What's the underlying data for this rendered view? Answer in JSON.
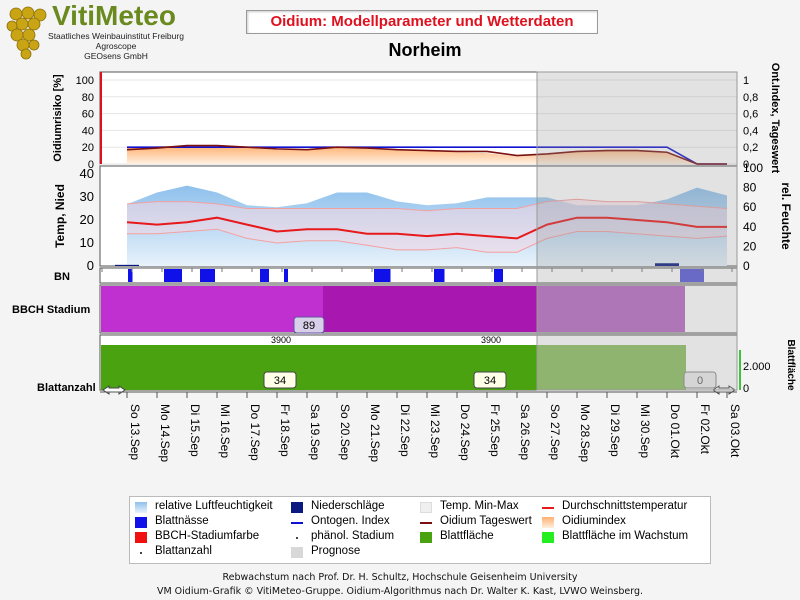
{
  "header": {
    "logo_name": "VitiMeteo",
    "logo_lines": [
      "Staatliches Weinbauinstitut Freiburg",
      "Agroscope",
      "GEOsens GmbH"
    ],
    "title": "Oidium: Modellparameter und Wetterdaten",
    "location": "Norheim"
  },
  "axes": {
    "risk_label": "Oidiumrisiko [%]",
    "risk_ticks": [
      "0",
      "20",
      "40",
      "60",
      "80",
      "100"
    ],
    "ont_label": "Ont.Index, Tageswert",
    "ont_ticks": [
      "0",
      "0,2",
      "0,4",
      "0,6",
      "0,8",
      "1"
    ],
    "temp_label": "Temp, Nied",
    "temp_ticks": [
      "0",
      "10",
      "20",
      "30",
      "40"
    ],
    "hum_label": "rel. Feuchte",
    "hum_ticks": [
      "0",
      "20",
      "40",
      "60",
      "80",
      "100"
    ],
    "bn_label": "BN",
    "bbch_label": "BBCH Stadium",
    "blatt_label": "Blattanzahl",
    "blattflaeche_label": "Blattfläche",
    "blattflaeche_tick": "2.000",
    "blattflaeche_zero": "0"
  },
  "chart_data": {
    "type": "line",
    "x": [
      "So 13.Sep",
      "Mo 14.Sep",
      "Di 15.Sep",
      "Mi 16.Sep",
      "Do 17.Sep",
      "Fr 18.Sep",
      "Sa 19.Sep",
      "So 20.Sep",
      "Mo 21.Sep",
      "Di 22.Sep",
      "Mi 23.Sep",
      "Do 24.Sep",
      "Fr 25.Sep",
      "Sa 26.Sep",
      "So 27.Sep",
      "Mo 28.Sep",
      "Di 29.Sep",
      "Mi 30.Sep",
      "Do 01.Okt",
      "Fr 02.Okt",
      "Sa 03.Okt"
    ],
    "prognosis_start": "So 27.Sep",
    "panels": {
      "oidium": {
        "ylim": [
          0,
          100
        ],
        "y2lim": [
          0,
          1
        ],
        "ontogen_index": [
          0.2,
          0.2,
          0.2,
          0.2,
          0.2,
          0.2,
          0.2,
          0.2,
          0.2,
          0.2,
          0.2,
          0.2,
          0.2,
          0.2,
          0.2,
          0.2,
          0.2,
          0.2,
          0.2,
          0.0,
          0.0
        ],
        "oidium_tageswert": [
          0.17,
          0.19,
          0.22,
          0.22,
          0.2,
          0.18,
          0.17,
          0.2,
          0.19,
          0.17,
          0.16,
          0.15,
          0.15,
          0.1,
          0.12,
          0.15,
          0.16,
          0.16,
          0.14,
          0.0,
          0.0
        ],
        "oidiumindex": [
          20,
          21,
          22,
          21,
          19,
          17,
          17,
          20,
          18,
          16,
          15,
          14,
          13,
          9,
          12,
          15,
          17,
          17,
          14,
          0,
          0
        ]
      },
      "weather": {
        "ylim": [
          0,
          40
        ],
        "y2lim": [
          0,
          100
        ],
        "durchschnittstemperatur": [
          19,
          18,
          19,
          21,
          18,
          15,
          16,
          16,
          14,
          14,
          13,
          14,
          13,
          12,
          18,
          21,
          21,
          20,
          19,
          17,
          17
        ],
        "temp_max": [
          27,
          28,
          28,
          27,
          25,
          25,
          25,
          25,
          25,
          25,
          24,
          25,
          25,
          25,
          28,
          29,
          28,
          28,
          27,
          26,
          25
        ],
        "temp_min": [
          14,
          14,
          15,
          16,
          12,
          10,
          11,
          11,
          9,
          7,
          7,
          8,
          6,
          6,
          12,
          15,
          15,
          14,
          13,
          12,
          13
        ],
        "relative_luftfeuchtigkeit": [
          63,
          75,
          82,
          75,
          62,
          60,
          64,
          75,
          75,
          66,
          62,
          64,
          70,
          70,
          70,
          62,
          62,
          62,
          68,
          80,
          72
        ],
        "niederschlaege": [
          0.5,
          0,
          0,
          0,
          0,
          0,
          0,
          0,
          0,
          0,
          0,
          0,
          0,
          0,
          0,
          0,
          0,
          0,
          1.2,
          0,
          0
        ]
      },
      "bbch": {
        "stadium_label": "89",
        "prognosis_color": "#b868c4",
        "colors": [
          "#c030d0",
          "#a818b0"
        ]
      },
      "blatt": {
        "blattanzahl_labels": [
          "34",
          "34",
          "0"
        ],
        "blattflaeche_labels": [
          "3900",
          "3900"
        ]
      }
    }
  },
  "legend": [
    {
      "label": "relative Luftfeuchtigkeit",
      "swatch": "lightblue"
    },
    {
      "label": "Niederschläge",
      "swatch": "navy"
    },
    {
      "label": "Temp. Min-Max",
      "swatch": "whitesmoke"
    },
    {
      "label": "Durchschnittstemperatur",
      "swatch": "redline"
    },
    {
      "label": "Blattnässe",
      "swatch": "blue"
    },
    {
      "label": "Ontogen. Index",
      "swatch": "blueline"
    },
    {
      "label": "Oidium Tageswert",
      "swatch": "darkredline"
    },
    {
      "label": "Oidiumindex",
      "swatch": "orange"
    },
    {
      "label": "BBCH-Stadiumfarbe",
      "swatch": "red"
    },
    {
      "label": "phänol. Stadium",
      "swatch": "dot"
    },
    {
      "label": "Blattfläche",
      "swatch": "green"
    },
    {
      "label": "Blattfläche im Wachstum",
      "swatch": "lightgreen"
    },
    {
      "label": "Blattanzahl",
      "swatch": "dot"
    },
    {
      "label": "Prognose",
      "swatch": "grey"
    }
  ],
  "footer": {
    "line1": "Rebwachstum nach Prof. Dr. H. Schultz, Hochschule Geisenheim University",
    "line2": "VM Oidium-Grafik © VitiMeteo-Gruppe. Oidium-Algorithmus nach Dr. Walter K. Kast, LVWO Weinsberg."
  },
  "colors": {
    "title_red": "#e0101e",
    "temp_line": "#e8191b",
    "ontogen": "#1010d0",
    "tageswert": "#7a1010",
    "blatt_green": "#4aa210",
    "nass_blue": "#1010e8",
    "prognose_grey": "#d8d8d8"
  }
}
